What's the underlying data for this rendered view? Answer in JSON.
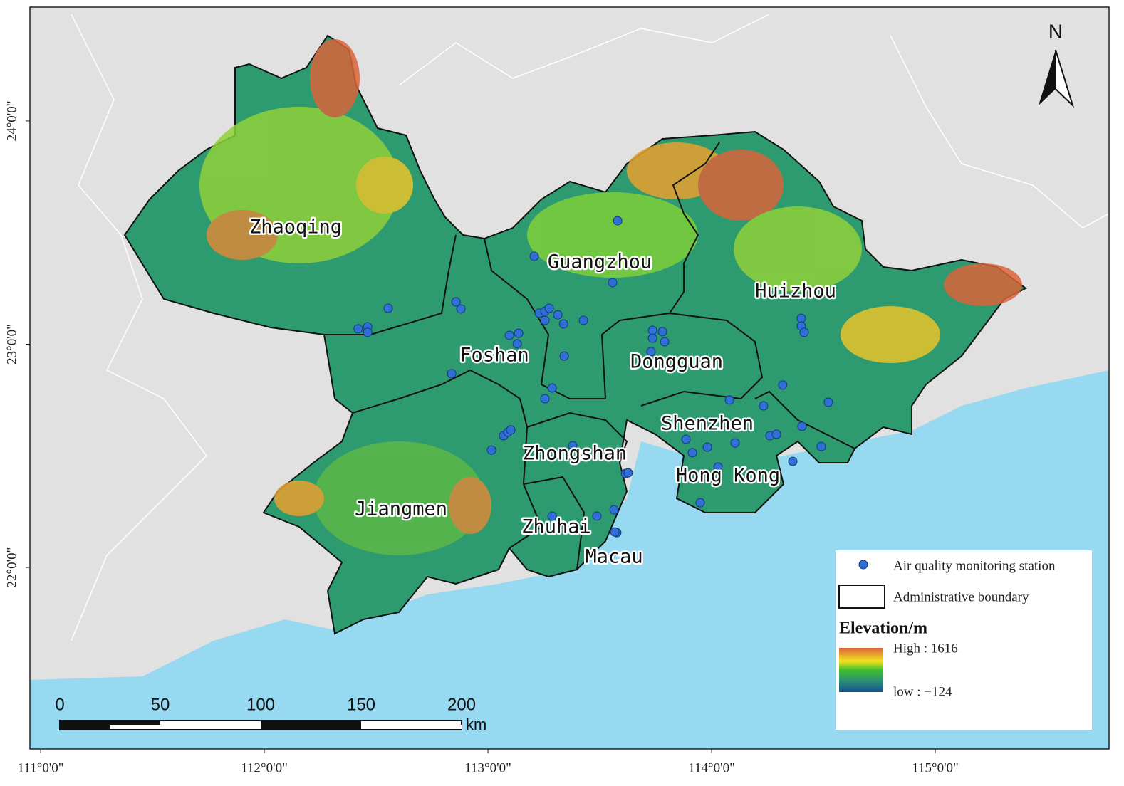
{
  "map": {
    "xlim": [
      110.952,
      115.777
    ],
    "ylim": [
      21.187,
      24.51
    ],
    "xticks": [
      {
        "value": 111,
        "label": "111°0'0\""
      },
      {
        "value": 112,
        "label": "112°0'0\""
      },
      {
        "value": 113,
        "label": "113°0'0\""
      },
      {
        "value": 114,
        "label": "114°0'0\""
      },
      {
        "value": 115,
        "label": "115°0'0\""
      }
    ],
    "yticks": [
      {
        "value": 22,
        "label": "22°0'0\""
      },
      {
        "value": 23,
        "label": "23°0'0\""
      },
      {
        "value": 24,
        "label": "24°0'0\""
      }
    ],
    "north": "N",
    "cities": [
      "Zhaoqing",
      "Guangzhou",
      "Huizhou",
      "Foshan",
      "Dongguan",
      "Shenzhen",
      "Zhongshan",
      "Hong Kong",
      "Jiangmen",
      "Zhuhai",
      "Macau"
    ],
    "stations": {
      "name": "Air quality monitoring station",
      "color": "#2f6fd6",
      "lon": [
        113.58,
        113.207,
        113.557,
        112.554,
        112.857,
        112.879,
        112.42,
        112.462,
        112.462,
        113.096,
        113.137,
        113.131,
        113.229,
        113.255,
        113.274,
        113.255,
        113.312,
        113.338,
        113.427,
        113.341,
        112.838,
        113.287,
        113.255,
        113.736,
        113.78,
        113.736,
        113.79,
        113.729,
        114.401,
        114.401,
        114.414,
        114.08,
        114.232,
        114.318,
        114.522,
        114.404,
        114.261,
        114.29,
        114.49,
        113.885,
        113.981,
        113.914,
        114.105,
        113.379,
        113.016,
        113.07,
        113.089,
        113.102,
        113.615,
        113.627,
        114.029,
        114.363,
        113.949,
        113.287,
        113.487,
        113.564,
        113.576,
        113.567
      ],
      "lat": [
        23.553,
        23.394,
        23.276,
        23.161,
        23.19,
        23.158,
        23.069,
        23.078,
        23.053,
        23.04,
        23.049,
        23.002,
        23.139,
        23.148,
        23.161,
        23.107,
        23.132,
        23.091,
        23.107,
        22.947,
        22.868,
        22.804,
        22.756,
        23.062,
        23.056,
        23.027,
        23.011,
        22.967,
        23.116,
        23.081,
        23.053,
        22.75,
        22.724,
        22.817,
        22.74,
        22.632,
        22.59,
        22.597,
        22.542,
        22.574,
        22.539,
        22.514,
        22.558,
        22.545,
        22.526,
        22.59,
        22.606,
        22.616,
        22.421,
        22.424,
        22.45,
        22.475,
        22.29,
        22.23,
        22.23,
        22.258,
        22.156,
        22.159
      ]
    },
    "boundary_label": "Administrative boundary",
    "elevation": {
      "title": "Elevation/m",
      "high": {
        "value": 1616,
        "label": "High : 1616"
      },
      "low": {
        "value": -124,
        "label": "low : −124"
      }
    },
    "scalebar": {
      "unit": "km",
      "ticks": [
        0,
        50,
        100,
        150,
        200
      ]
    }
  }
}
